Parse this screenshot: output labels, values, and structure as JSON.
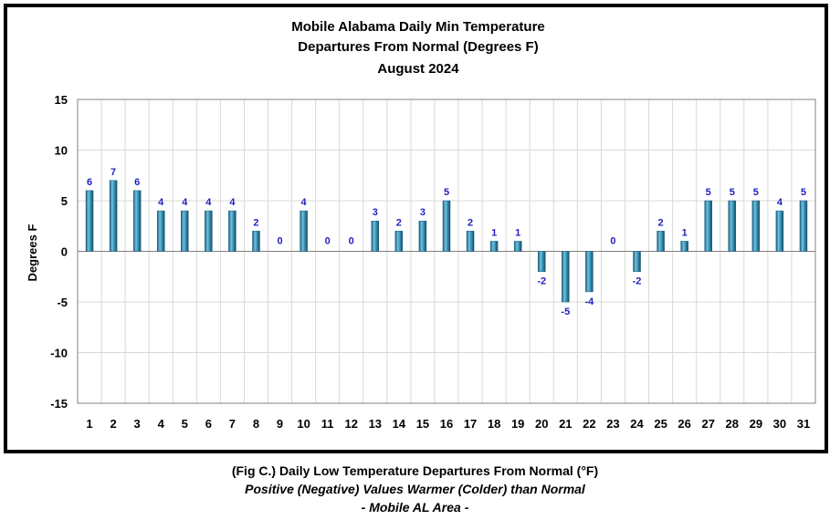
{
  "chart_data": {
    "type": "bar",
    "title": [
      "Mobile Alabama Daily Min Temperature",
      "Departures From Normal (Degrees F)",
      "August 2024"
    ],
    "xlabel": "",
    "ylabel": "Degrees F",
    "ylim": [
      -15,
      15
    ],
    "y_ticks": [
      15,
      10,
      5,
      0,
      -5,
      -10,
      -15
    ],
    "grid": true,
    "categories": [
      "1",
      "2",
      "3",
      "4",
      "5",
      "6",
      "7",
      "8",
      "9",
      "10",
      "11",
      "12",
      "13",
      "14",
      "15",
      "16",
      "17",
      "18",
      "19",
      "20",
      "21",
      "22",
      "23",
      "24",
      "25",
      "26",
      "27",
      "28",
      "29",
      "30",
      "31"
    ],
    "values": [
      6,
      7,
      6,
      4,
      4,
      4,
      4,
      2,
      0,
      4,
      0,
      0,
      3,
      2,
      3,
      5,
      2,
      1,
      1,
      -2,
      -5,
      -4,
      0,
      -2,
      2,
      1,
      5,
      5,
      5,
      4,
      5
    ],
    "bar_color": "#3f97b8",
    "label_color": "#1f1fbf"
  },
  "caption": {
    "line1": "(Fig C.) Daily Low Temperature Departures From Normal (°F)",
    "line2": "Positive (Negative) Values Warmer (Colder) than Normal",
    "line3": "- Mobile AL Area -"
  }
}
